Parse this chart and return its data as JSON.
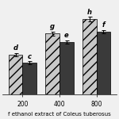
{
  "categories": [
    "200",
    "400",
    "800"
  ],
  "flesh_values": [
    38,
    58,
    72
  ],
  "peel_values": [
    30,
    50,
    60
  ],
  "flesh_errors": [
    1.5,
    2.0,
    2.0
  ],
  "peel_errors": [
    1.5,
    1.5,
    1.5
  ],
  "flesh_labels": [
    "d",
    "g",
    "h"
  ],
  "peel_labels": [
    "c",
    "e",
    "f"
  ],
  "flesh_hatch": "///",
  "xlabel": "f ethanol extract of Coleus tuberosus",
  "xlabel_fontsize": 5.0,
  "bar_width": 0.38,
  "ylim": [
    0,
    88
  ],
  "figsize": [
    1.5,
    1.5
  ],
  "dpi": 100,
  "flesh_facecolor": "#c8c8c8",
  "peel_facecolor": "#3a3a3a",
  "annotation_fontsize": 6,
  "tick_fontsize": 5.5,
  "bg_color": "#f0f0f0"
}
